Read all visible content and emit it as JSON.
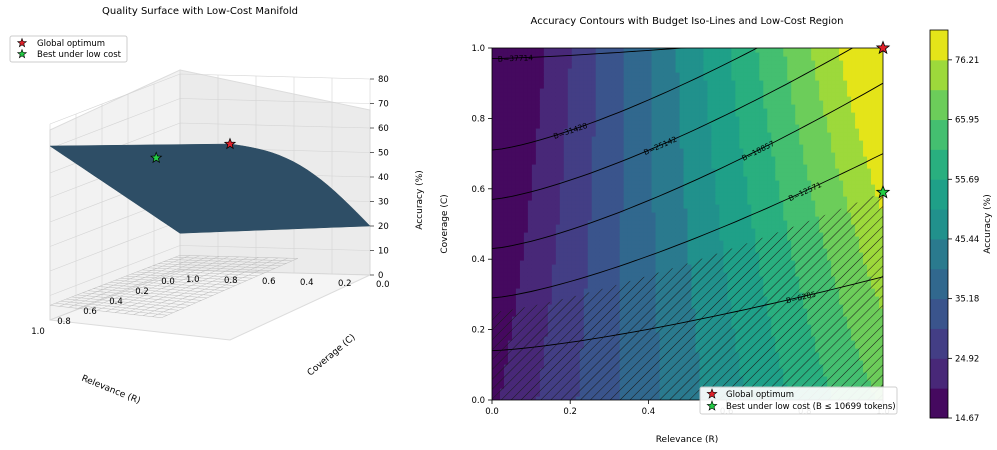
{
  "chart_data": [
    {
      "type": "surface3d",
      "title": "Quality Surface with Low-Cost Manifold",
      "xlabel": "Relevance (R)",
      "ylabel": "Coverage (C)",
      "zlabel": "Accuracy (%)",
      "xticks": [
        "1.0",
        "0.8",
        "0.6",
        "0.4",
        "0.2",
        "0.0"
      ],
      "yticks": [
        "0.0",
        "0.2",
        "0.4",
        "0.6",
        "0.8",
        "1.0"
      ],
      "zticks": [
        "0",
        "10",
        "20",
        "30",
        "40",
        "50",
        "60",
        "70",
        "80"
      ],
      "zlim": [
        0,
        80
      ],
      "surface_color": "#2e4e66",
      "legend_position": "upper-left",
      "legend": [
        {
          "label": "Global optimum",
          "marker": "star",
          "color": "#e0202a"
        },
        {
          "label": "Best under low cost",
          "marker": "star",
          "color": "#22cc44"
        }
      ],
      "corners": [
        {
          "R": 1.0,
          "C": 0.0,
          "acc": 71
        },
        {
          "R": 1.0,
          "C": 1.0,
          "acc": 80
        },
        {
          "R": 0.0,
          "C": 1.0,
          "acc": 20
        },
        {
          "R": 0.0,
          "C": 0.0,
          "acc": 15
        }
      ],
      "points": [
        {
          "name": "global-optimum",
          "R": 1.0,
          "C": 1.0,
          "acc": 80
        },
        {
          "name": "best-low-cost",
          "R": 1.0,
          "C": 0.59,
          "acc": 71
        }
      ]
    },
    {
      "type": "contour",
      "title": "Accuracy Contours with Budget Iso-Lines and Low-Cost Region",
      "xlabel": "Relevance (R)",
      "ylabel": "Coverage (C)",
      "xlim": [
        0,
        1
      ],
      "ylim": [
        0,
        1
      ],
      "xticks": [
        "0.0",
        "0.2",
        "0.4",
        "0.6",
        "0.8",
        "1.0"
      ],
      "yticks": [
        "0.0",
        "0.2",
        "0.4",
        "0.6",
        "0.8",
        "1.0"
      ],
      "colorbar": {
        "label": "Accuracy (%)",
        "ticks": [
          "14.67",
          "24.92",
          "35.18",
          "45.44",
          "55.69",
          "65.95",
          "76.21"
        ],
        "min": 14.67,
        "max": 81.34,
        "levels": 13,
        "colors": [
          "#45095f",
          "#482878",
          "#433e85",
          "#3a548c",
          "#31688e",
          "#2a7a8e",
          "#21918c",
          "#1fa088",
          "#29af7f",
          "#44bf70",
          "#6ccd5a",
          "#9dd93b",
          "#e4e419"
        ]
      },
      "budget_lines": [
        {
          "label": "B=37714",
          "c_at_r0": 0.97,
          "c_at_r1": 1.05
        },
        {
          "label": "B=31428",
          "c_at_r0": 0.71,
          "c_at_r1": 1.2
        },
        {
          "label": "B=25142",
          "c_at_r0": 0.57,
          "c_at_r1": 1.05
        },
        {
          "label": "B=18857",
          "c_at_r0": 0.43,
          "c_at_r1": 0.9
        },
        {
          "label": "B=12571",
          "c_at_r0": 0.29,
          "c_at_r1": 0.7
        },
        {
          "label": "B=6285",
          "c_at_r0": 0.14,
          "c_at_r1": 0.35
        }
      ],
      "low_cost_region_boundary": {
        "c_at_r0": 0.25,
        "c_at_r1": 0.59
      },
      "legend_position": "lower-right",
      "legend": [
        {
          "label": "Global optimum",
          "marker": "star",
          "color": "#e0202a"
        },
        {
          "label": "Best under low cost (B ≤ 10699 tokens)",
          "marker": "star",
          "color": "#22cc44"
        }
      ],
      "points": [
        {
          "name": "global-optimum",
          "R": 1.0,
          "C": 1.0
        },
        {
          "name": "best-low-cost",
          "R": 1.0,
          "C": 0.59
        }
      ]
    }
  ]
}
